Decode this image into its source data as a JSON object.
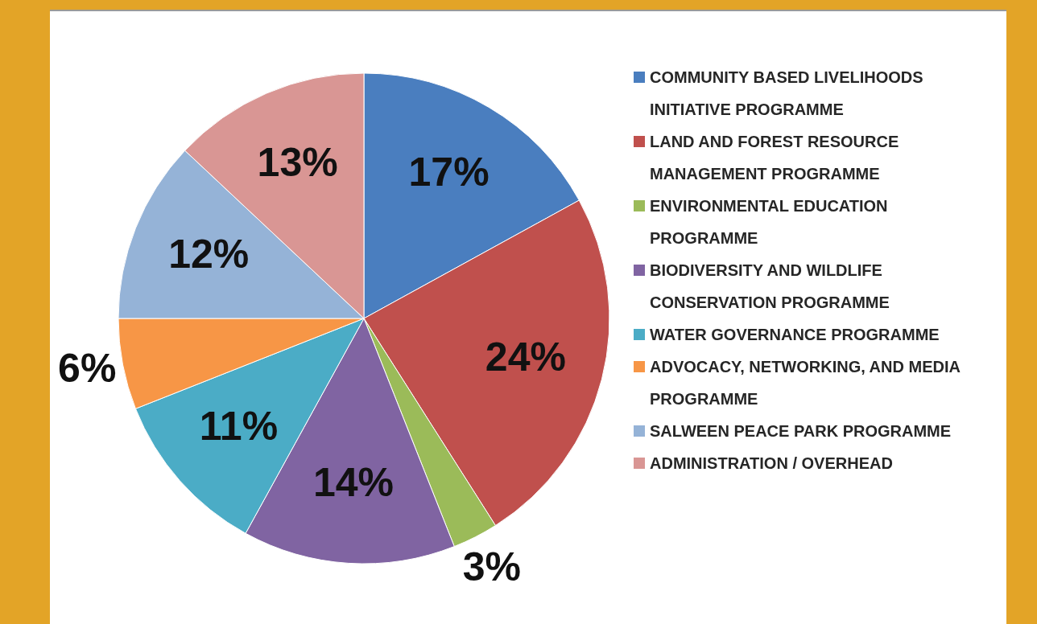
{
  "chart_data": {
    "type": "pie",
    "categories": [
      "COMMUNITY BASED LIVELIHOODS INITIATIVE PROGRAMME",
      "LAND AND FOREST RESOURCE MANAGEMENT PROGRAMME",
      "ENVIRONMENTAL EDUCATION PROGRAMME",
      "BIODIVERSITY AND WILDLIFE CONSERVATION PROGRAMME",
      "WATER GOVERNANCE PROGRAMME",
      "ADVOCACY, NETWORKING, AND MEDIA PROGRAMME",
      "SALWEEN PEACE PARK PROGRAMME",
      "ADMINISTRATION / OVERHEAD"
    ],
    "values": [
      17,
      24,
      3,
      14,
      11,
      6,
      12,
      13
    ],
    "colors": [
      "#4a7ebf",
      "#c0504d",
      "#9bbb59",
      "#8064a2",
      "#4bacc6",
      "#f79646",
      "#95b3d7",
      "#d99694"
    ],
    "value_labels": [
      "17%",
      "24%",
      "3%",
      "14%",
      "11%",
      "6%",
      "12%",
      "13%"
    ],
    "legend": "right"
  }
}
